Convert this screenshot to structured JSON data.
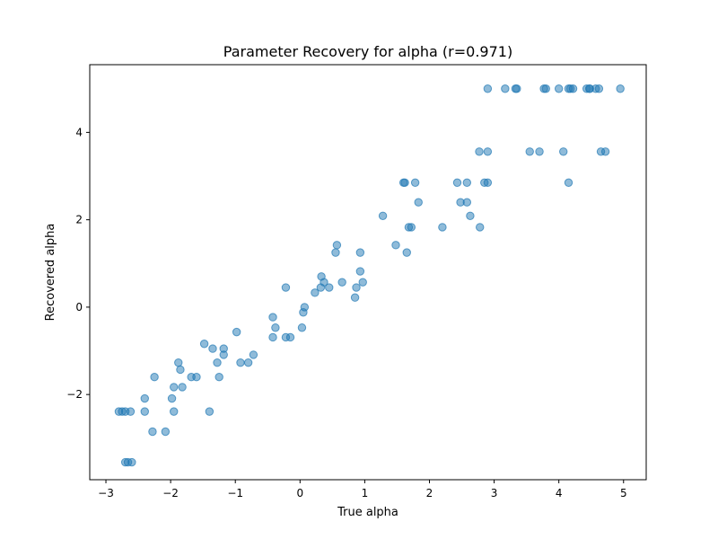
{
  "chart_data": {
    "type": "scatter",
    "title": "Parameter Recovery for alpha (r=0.971)",
    "xlabel": "True alpha",
    "ylabel": "Recovered alpha",
    "xlim": [
      -3.25,
      5.35
    ],
    "ylim": [
      -3.95,
      5.55
    ],
    "xticks": [
      -3,
      -2,
      -1,
      0,
      1,
      2,
      3,
      4,
      5
    ],
    "yticks": [
      -2,
      0,
      2,
      4
    ],
    "grid": false,
    "series": [
      {
        "color": "#1f77b4",
        "points": [
          [
            -2.8,
            -2.39
          ],
          [
            -2.75,
            -2.39
          ],
          [
            -2.7,
            -2.39
          ],
          [
            -2.62,
            -2.39
          ],
          [
            -2.4,
            -2.39
          ],
          [
            -1.95,
            -2.39
          ],
          [
            -1.4,
            -2.39
          ],
          [
            -2.7,
            -3.55
          ],
          [
            -2.66,
            -3.55
          ],
          [
            -2.6,
            -3.55
          ],
          [
            -2.28,
            -2.85
          ],
          [
            -2.08,
            -2.85
          ],
          [
            -2.4,
            -2.09
          ],
          [
            -1.98,
            -2.09
          ],
          [
            -1.95,
            -1.83
          ],
          [
            -1.82,
            -1.83
          ],
          [
            -2.25,
            -1.6
          ],
          [
            -1.68,
            -1.6
          ],
          [
            -1.6,
            -1.6
          ],
          [
            -1.25,
            -1.6
          ],
          [
            -1.88,
            -1.27
          ],
          [
            -1.85,
            -1.43
          ],
          [
            -1.28,
            -1.27
          ],
          [
            -0.92,
            -1.27
          ],
          [
            -0.8,
            -1.27
          ],
          [
            -1.48,
            -0.84
          ],
          [
            -1.35,
            -0.95
          ],
          [
            -1.18,
            -0.95
          ],
          [
            -1.18,
            -1.09
          ],
          [
            -0.72,
            -1.09
          ],
          [
            -0.98,
            -0.57
          ],
          [
            -0.42,
            -0.69
          ],
          [
            -0.22,
            -0.69
          ],
          [
            -0.15,
            -0.69
          ],
          [
            -0.42,
            -0.23
          ],
          [
            -0.38,
            -0.47
          ],
          [
            -0.22,
            0.45
          ],
          [
            0.03,
            -0.47
          ],
          [
            0.05,
            -0.12
          ],
          [
            0.07,
            0.0
          ],
          [
            0.23,
            0.33
          ],
          [
            0.32,
            0.45
          ],
          [
            0.33,
            0.7
          ],
          [
            0.37,
            0.57
          ],
          [
            0.45,
            0.45
          ],
          [
            0.55,
            1.25
          ],
          [
            0.57,
            1.42
          ],
          [
            0.65,
            0.57
          ],
          [
            0.85,
            0.22
          ],
          [
            0.87,
            0.45
          ],
          [
            0.93,
            0.82
          ],
          [
            0.93,
            1.25
          ],
          [
            0.97,
            0.57
          ],
          [
            1.28,
            2.09
          ],
          [
            1.48,
            1.42
          ],
          [
            1.6,
            2.85
          ],
          [
            1.62,
            2.85
          ],
          [
            1.65,
            1.25
          ],
          [
            1.68,
            1.83
          ],
          [
            1.72,
            1.83
          ],
          [
            1.78,
            2.85
          ],
          [
            1.83,
            2.4
          ],
          [
            2.2,
            1.83
          ],
          [
            2.43,
            2.85
          ],
          [
            2.48,
            2.4
          ],
          [
            2.58,
            2.85
          ],
          [
            2.58,
            2.4
          ],
          [
            2.63,
            2.09
          ],
          [
            2.78,
            1.83
          ],
          [
            2.85,
            2.85
          ],
          [
            2.9,
            2.85
          ],
          [
            2.77,
            3.56
          ],
          [
            2.9,
            3.56
          ],
          [
            2.9,
            5.0
          ],
          [
            3.17,
            5.0
          ],
          [
            3.33,
            5.0
          ],
          [
            3.35,
            5.0
          ],
          [
            3.55,
            3.56
          ],
          [
            3.7,
            3.56
          ],
          [
            3.77,
            5.0
          ],
          [
            3.8,
            5.0
          ],
          [
            4.0,
            5.0
          ],
          [
            4.07,
            3.56
          ],
          [
            4.15,
            2.85
          ],
          [
            4.15,
            5.0
          ],
          [
            4.18,
            5.0
          ],
          [
            4.22,
            5.0
          ],
          [
            4.43,
            5.0
          ],
          [
            4.47,
            5.0
          ],
          [
            4.48,
            5.0
          ],
          [
            4.57,
            5.0
          ],
          [
            4.62,
            5.0
          ],
          [
            4.65,
            3.56
          ],
          [
            4.72,
            3.56
          ],
          [
            4.95,
            5.0
          ]
        ]
      }
    ]
  }
}
